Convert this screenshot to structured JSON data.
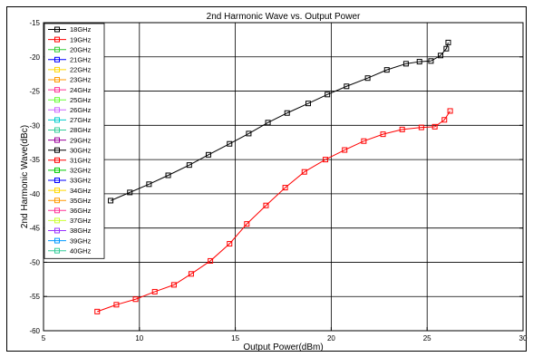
{
  "chart_data": {
    "type": "line",
    "title": "2nd Harmonic Wave vs. Output Power",
    "xlabel": "Output Power(dBm)",
    "ylabel": "2nd Harmonic Wave(dBc)",
    "xlim": [
      5,
      30
    ],
    "ylim": [
      -60,
      -15
    ],
    "xticks": [
      "5",
      "10",
      "15",
      "20",
      "25",
      "30"
    ],
    "yticks": [
      "-60",
      "-55",
      "-50",
      "-45",
      "-40",
      "-35",
      "-30",
      "-25",
      "-20",
      "-15"
    ],
    "grid": true,
    "legend_position": "top-left",
    "legend": [
      {
        "name": "18GHz",
        "color": "#000000"
      },
      {
        "name": "19GHz",
        "color": "#ff0000"
      },
      {
        "name": "20GHz",
        "color": "#33cc33"
      },
      {
        "name": "21GHz",
        "color": "#0000ff"
      },
      {
        "name": "22GHz",
        "color": "#ffd700"
      },
      {
        "name": "23GHz",
        "color": "#ff9900"
      },
      {
        "name": "24GHz",
        "color": "#ff3399"
      },
      {
        "name": "25GHz",
        "color": "#66ff33"
      },
      {
        "name": "26GHz",
        "color": "#cc66ff"
      },
      {
        "name": "27GHz",
        "color": "#00cccc"
      },
      {
        "name": "28GHz",
        "color": "#33cc99"
      },
      {
        "name": "29GHz",
        "color": "#990099"
      },
      {
        "name": "30GHz",
        "color": "#000000"
      },
      {
        "name": "31GHz",
        "color": "#ff0000"
      },
      {
        "name": "32GHz",
        "color": "#00cc00"
      },
      {
        "name": "33GHz",
        "color": "#0000ff"
      },
      {
        "name": "34GHz",
        "color": "#ffd700"
      },
      {
        "name": "35GHz",
        "color": "#ff9900"
      },
      {
        "name": "36GHz",
        "color": "#ff3399"
      },
      {
        "name": "37GHz",
        "color": "#ccff33"
      },
      {
        "name": "38GHz",
        "color": "#9933ff"
      },
      {
        "name": "39GHz",
        "color": "#0099ff"
      },
      {
        "name": "40GHz",
        "color": "#33cc99"
      }
    ],
    "series": [
      {
        "name": "18GHz",
        "color": "#000000",
        "x": [
          8.5,
          9.5,
          10.5,
          11.5,
          12.6,
          13.6,
          14.7,
          15.7,
          16.7,
          17.7,
          18.8,
          19.8,
          20.8,
          21.9,
          22.9,
          23.9,
          24.6,
          25.2,
          25.7,
          26.0,
          26.1
        ],
        "y": [
          -41.0,
          -39.8,
          -38.6,
          -37.3,
          -35.8,
          -34.3,
          -32.7,
          -31.2,
          -29.6,
          -28.2,
          -26.8,
          -25.5,
          -24.3,
          -23.1,
          -21.9,
          -21.0,
          -20.7,
          -20.6,
          -19.8,
          -18.8,
          -17.9
        ]
      },
      {
        "name": "19GHz",
        "color": "#ff0000",
        "x": [
          7.8,
          8.8,
          9.8,
          10.8,
          11.8,
          12.7,
          13.7,
          14.7,
          15.6,
          16.6,
          17.6,
          18.6,
          19.7,
          20.7,
          21.7,
          22.7,
          23.7,
          24.7,
          25.4,
          25.9,
          26.2
        ],
        "y": [
          -57.2,
          -56.2,
          -55.4,
          -54.3,
          -53.3,
          -51.7,
          -49.8,
          -47.3,
          -44.4,
          -41.7,
          -39.1,
          -36.8,
          -35.0,
          -33.6,
          -32.3,
          -31.3,
          -30.6,
          -30.3,
          -30.2,
          -29.2,
          -27.9
        ]
      }
    ]
  }
}
